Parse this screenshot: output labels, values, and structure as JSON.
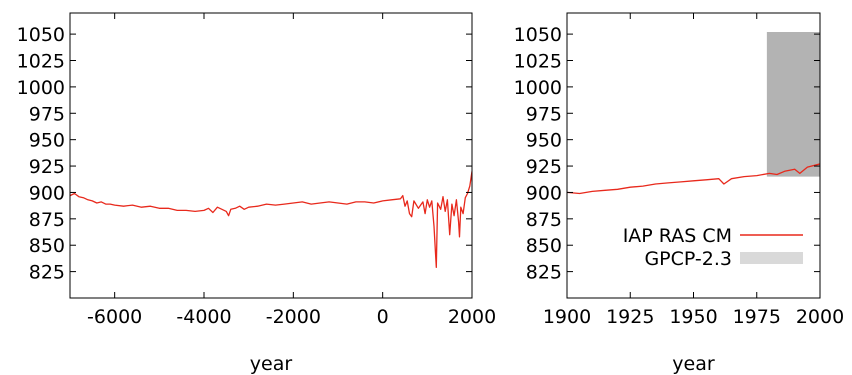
{
  "chart_data": [
    {
      "type": "line",
      "xlabel": "year",
      "ylabel": "",
      "xlim": [
        -7000,
        2000
      ],
      "ylim": [
        800,
        1070
      ],
      "xticks": [
        -6000,
        -4000,
        -2000,
        0,
        2000
      ],
      "yticks": [
        825,
        850,
        875,
        900,
        925,
        950,
        975,
        1000,
        1025,
        1050
      ],
      "grid": false,
      "series": [
        {
          "color": "#e8291c",
          "points": [
            [
              -7000,
              897
            ],
            [
              -6900,
              899
            ],
            [
              -6800,
              896
            ],
            [
              -6700,
              895
            ],
            [
              -6600,
              893
            ],
            [
              -6500,
              892
            ],
            [
              -6400,
              890
            ],
            [
              -6300,
              891
            ],
            [
              -6200,
              889
            ],
            [
              -6100,
              889
            ],
            [
              -6000,
              888
            ],
            [
              -5800,
              887
            ],
            [
              -5600,
              888
            ],
            [
              -5400,
              886
            ],
            [
              -5200,
              887
            ],
            [
              -5000,
              885
            ],
            [
              -4800,
              885
            ],
            [
              -4600,
              883
            ],
            [
              -4400,
              883
            ],
            [
              -4200,
              882
            ],
            [
              -4000,
              883
            ],
            [
              -3900,
              885
            ],
            [
              -3800,
              881
            ],
            [
              -3700,
              886
            ],
            [
              -3600,
              884
            ],
            [
              -3500,
              882
            ],
            [
              -3450,
              878
            ],
            [
              -3400,
              884
            ],
            [
              -3300,
              885
            ],
            [
              -3200,
              887
            ],
            [
              -3100,
              884
            ],
            [
              -3000,
              886
            ],
            [
              -2800,
              887
            ],
            [
              -2600,
              889
            ],
            [
              -2400,
              888
            ],
            [
              -2200,
              889
            ],
            [
              -2000,
              890
            ],
            [
              -1800,
              891
            ],
            [
              -1600,
              889
            ],
            [
              -1400,
              890
            ],
            [
              -1200,
              891
            ],
            [
              -1000,
              890
            ],
            [
              -800,
              889
            ],
            [
              -600,
              891
            ],
            [
              -400,
              891
            ],
            [
              -200,
              890
            ],
            [
              0,
              892
            ],
            [
              200,
              893
            ],
            [
              400,
              894
            ],
            [
              450,
              897
            ],
            [
              500,
              887
            ],
            [
              550,
              892
            ],
            [
              600,
              880
            ],
            [
              650,
              877
            ],
            [
              700,
              892
            ],
            [
              800,
              885
            ],
            [
              900,
              891
            ],
            [
              950,
              880
            ],
            [
              1000,
              893
            ],
            [
              1050,
              886
            ],
            [
              1100,
              892
            ],
            [
              1150,
              868
            ],
            [
              1200,
              829
            ],
            [
              1230,
              890
            ],
            [
              1300,
              884
            ],
            [
              1350,
              896
            ],
            [
              1400,
              882
            ],
            [
              1450,
              893
            ],
            [
              1500,
              860
            ],
            [
              1550,
              889
            ],
            [
              1600,
              878
            ],
            [
              1650,
              893
            ],
            [
              1700,
              872
            ],
            [
              1720,
              858
            ],
            [
              1750,
              886
            ],
            [
              1800,
              880
            ],
            [
              1850,
              895
            ],
            [
              1900,
              899
            ],
            [
              1950,
              906
            ],
            [
              2000,
              920
            ]
          ]
        }
      ]
    },
    {
      "type": "line",
      "xlabel": "year",
      "ylabel": "",
      "xlim": [
        1900,
        2000
      ],
      "ylim": [
        800,
        1070
      ],
      "xticks": [
        1900,
        1925,
        1950,
        1975,
        2000
      ],
      "yticks": [
        825,
        850,
        875,
        900,
        925,
        950,
        975,
        1000,
        1025,
        1050
      ],
      "grid": false,
      "legend": "bottom-right",
      "series": [
        {
          "name": "IAP RAS CM",
          "color": "#e8291c",
          "points": [
            [
              1900,
              900
            ],
            [
              1905,
              899
            ],
            [
              1910,
              901
            ],
            [
              1915,
              902
            ],
            [
              1920,
              903
            ],
            [
              1925,
              905
            ],
            [
              1930,
              906
            ],
            [
              1935,
              908
            ],
            [
              1940,
              909
            ],
            [
              1945,
              910
            ],
            [
              1950,
              911
            ],
            [
              1955,
              912
            ],
            [
              1960,
              913
            ],
            [
              1962,
              908
            ],
            [
              1965,
              913
            ],
            [
              1970,
              915
            ],
            [
              1975,
              916
            ],
            [
              1980,
              918
            ],
            [
              1983,
              917
            ],
            [
              1986,
              920
            ],
            [
              1990,
              922
            ],
            [
              1992,
              918
            ],
            [
              1995,
              924
            ],
            [
              2000,
              927
            ]
          ]
        },
        {
          "name": "GPCP-2.3",
          "color": "#b3b3b3",
          "type": "range",
          "x_range": [
            1979,
            2000
          ],
          "y_range": [
            915,
            1052
          ]
        }
      ]
    }
  ]
}
